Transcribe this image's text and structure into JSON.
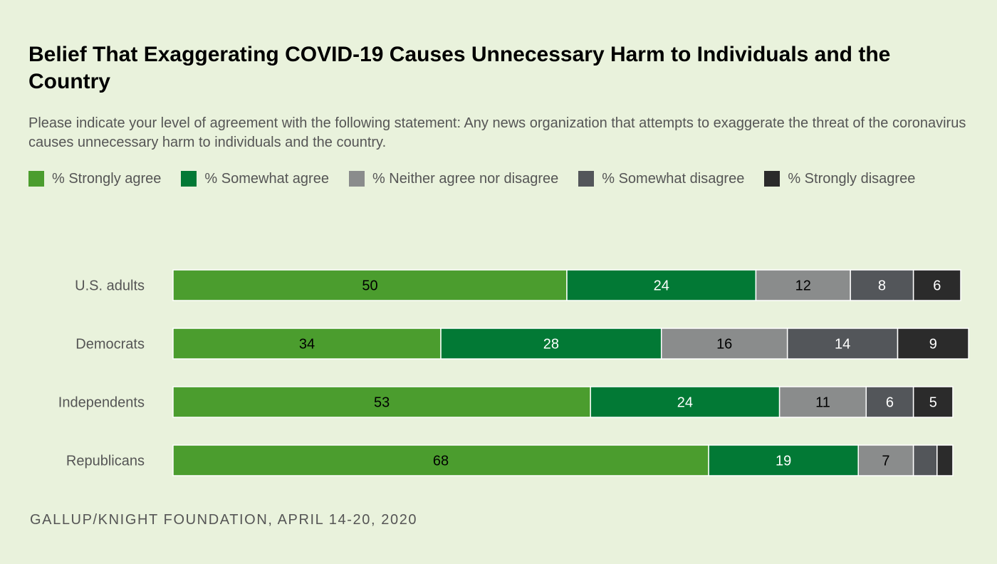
{
  "chart_data": {
    "type": "bar",
    "orientation": "horizontal",
    "stacked": true,
    "title": "Belief That Exaggerating COVID-19 Causes Unnecessary Harm to Individuals and the Country",
    "subtitle": "Please indicate your level of agreement with the following statement: Any news organization that attempts to exaggerate the threat of the coronavirus causes unnecessary harm to individuals and the country.",
    "categories": [
      "U.S. adults",
      "Democrats",
      "Independents",
      "Republicans"
    ],
    "series": [
      {
        "name": "% Strongly agree",
        "color": "#4b9d2e",
        "label_color": "#000000",
        "values": [
          50,
          34,
          53,
          68
        ],
        "labels": [
          "50",
          "34",
          "53",
          "68"
        ]
      },
      {
        "name": "% Somewhat agree",
        "color": "#027935",
        "label_color": "#ffffff",
        "values": [
          24,
          28,
          24,
          19
        ],
        "labels": [
          "24",
          "28",
          "24",
          "19"
        ]
      },
      {
        "name": "% Neither agree nor disagree",
        "color": "#8a8c8c",
        "label_color": "#000000",
        "values": [
          12,
          16,
          11,
          7
        ],
        "labels": [
          "12",
          "16",
          "11",
          "7"
        ]
      },
      {
        "name": "% Somewhat disagree",
        "color": "#53565a",
        "label_color": "#ffffff",
        "values": [
          8,
          14,
          6,
          3
        ],
        "labels": [
          "8",
          "14",
          "6",
          ""
        ]
      },
      {
        "name": "% Strongly disagree",
        "color": "#2b2b2b",
        "label_color": "#ffffff",
        "values": [
          6,
          9,
          5,
          2
        ],
        "labels": [
          "6",
          "9",
          "5",
          ""
        ]
      }
    ],
    "xlim": [
      0,
      100
    ],
    "legend": "top",
    "grid": false,
    "source": "GALLUP/KNIGHT FOUNDATION, APRIL 14-20, 2020"
  }
}
